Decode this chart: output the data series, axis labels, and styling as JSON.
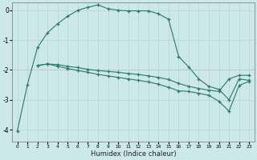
{
  "xlabel": "Humidex (Indice chaleur)",
  "bg_color": "#cce8e8",
  "grid_color": "#b8d8d8",
  "line_color": "#2a7a6a",
  "redline_color": "#e08080",
  "x_ticks": [
    0,
    1,
    2,
    3,
    4,
    5,
    6,
    7,
    8,
    9,
    10,
    11,
    12,
    13,
    14,
    15,
    16,
    17,
    18,
    19,
    20,
    21,
    22,
    23
  ],
  "y_ticks": [
    0,
    -1,
    -2,
    -3,
    -4
  ],
  "xlim": [
    -0.5,
    23.5
  ],
  "ylim": [
    -4.4,
    0.25
  ],
  "line1_x": [
    0,
    1,
    2,
    3,
    4,
    5,
    6,
    7,
    8,
    9,
    10,
    11,
    12,
    13,
    14,
    15,
    16,
    17,
    18,
    19,
    20,
    21,
    22,
    23
  ],
  "line1_y": [
    -4.05,
    -2.5,
    -1.25,
    -0.75,
    -0.45,
    -0.2,
    0.0,
    0.1,
    0.18,
    0.05,
    0.0,
    -0.02,
    -0.02,
    -0.02,
    -0.12,
    -0.3,
    -1.55,
    -1.9,
    -2.3,
    -2.55,
    -2.65,
    -3.0,
    -2.3,
    -2.35
  ],
  "line2_x": [
    2,
    3,
    4,
    5,
    6,
    7,
    8,
    9,
    10,
    11,
    12,
    13,
    14,
    15,
    16,
    17,
    18,
    19,
    20,
    21,
    22,
    23
  ],
  "line2_y": [
    -1.85,
    -1.8,
    -1.82,
    -1.88,
    -1.92,
    -1.98,
    -2.02,
    -2.05,
    -2.08,
    -2.12,
    -2.15,
    -2.2,
    -2.25,
    -2.32,
    -2.45,
    -2.55,
    -2.62,
    -2.68,
    -2.72,
    -2.3,
    -2.18,
    -2.18
  ],
  "line3_x": [
    2,
    3,
    4,
    5,
    6,
    7,
    8,
    9,
    10,
    11,
    12,
    13,
    14,
    15,
    16,
    17,
    18,
    19,
    20,
    21,
    22,
    23
  ],
  "line3_y": [
    -1.85,
    -1.8,
    -1.88,
    -1.95,
    -2.02,
    -2.08,
    -2.15,
    -2.2,
    -2.25,
    -2.3,
    -2.35,
    -2.4,
    -2.48,
    -2.58,
    -2.7,
    -2.72,
    -2.78,
    -2.85,
    -3.05,
    -3.38,
    -2.52,
    -2.38
  ]
}
